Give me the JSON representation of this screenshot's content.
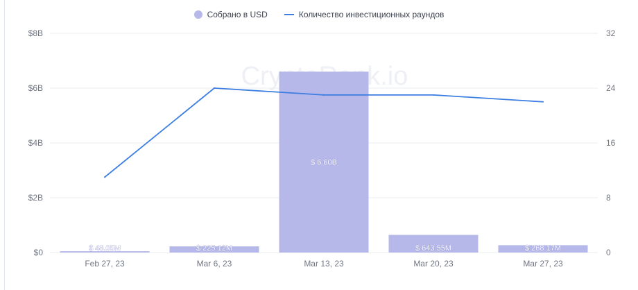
{
  "legend": {
    "bar_series": "Собрано в USD",
    "line_series": "Количество инвестиционных раундов"
  },
  "watermark": "CryptoRank.io",
  "colors": {
    "bar": "#b7b8ea",
    "line": "#3b7de0",
    "grid": "#e9ecf1",
    "axis_text": "#6f7582"
  },
  "chart_data": {
    "type": "bar",
    "categories": [
      "Feb 27, 23",
      "Mar 6, 23",
      "Mar 13, 23",
      "Mar 20, 23",
      "Mar 27, 23"
    ],
    "series": [
      {
        "name": "Собрано в USD",
        "type": "bar",
        "axis": "left",
        "values": [
          0.04805,
          0.22512,
          6.6,
          0.64355,
          0.26817
        ],
        "unit": "B USD",
        "labels": [
          "$ 48.05M",
          "$ 225.12M",
          "$ 6.60B",
          "$ 643.55M",
          "$ 268.17M"
        ]
      },
      {
        "name": "Количество инвестиционных раундов",
        "type": "line",
        "axis": "right",
        "values": [
          11,
          24,
          23,
          23,
          22
        ]
      }
    ],
    "y_left": {
      "ticks": [
        "$0",
        "$2B",
        "$4B",
        "$6B",
        "$8B"
      ],
      "ylim": [
        0,
        8
      ]
    },
    "y_right": {
      "ticks": [
        "0",
        "8",
        "16",
        "24",
        "32"
      ],
      "ylim": [
        0,
        32
      ]
    },
    "grid": true,
    "legend_position": "top-center"
  }
}
